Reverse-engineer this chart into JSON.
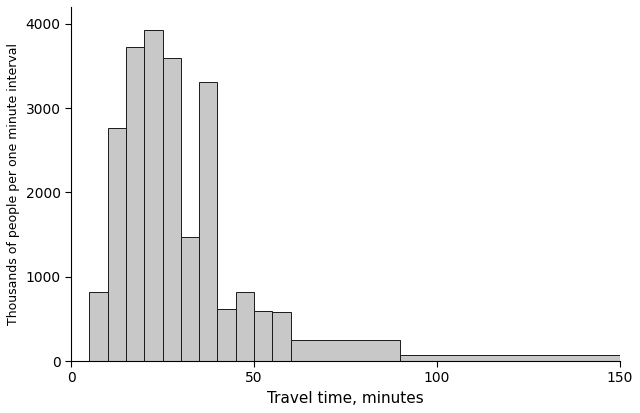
{
  "title": "",
  "xlabel": "Travel time, minutes",
  "ylabel": "Thousands of people per one minute interval",
  "xlabel_color": "#000000",
  "ylabel_color": "#000000",
  "bar_color": "#c8c8c8",
  "bar_edge_color": "#1a1a1a",
  "background_color": "#ffffff",
  "xlim": [
    0,
    150
  ],
  "ylim": [
    0,
    4200
  ],
  "yticks": [
    0,
    1000,
    2000,
    3000,
    4000
  ],
  "xticks": [
    0,
    50,
    100,
    150
  ],
  "bin_edges": [
    5,
    10,
    15,
    20,
    25,
    30,
    35,
    40,
    45,
    50,
    55,
    60,
    90,
    150
  ],
  "bar_heights": [
    820,
    2770,
    3730,
    3930,
    3590,
    1470,
    3310,
    620,
    820,
    590,
    580,
    250,
    75
  ]
}
